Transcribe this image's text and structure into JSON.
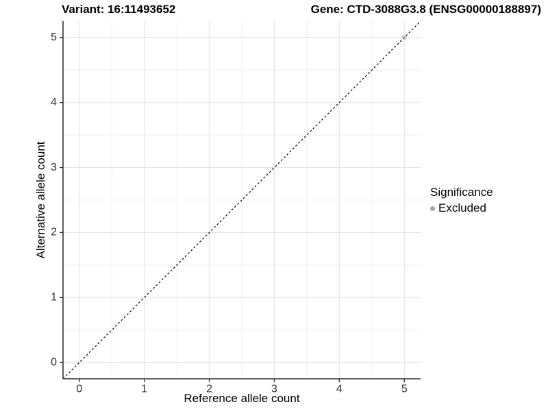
{
  "chart_data": {
    "type": "scatter",
    "title_left": "Variant: 16:11493652",
    "title_right": "Gene: CTD-3088G3.8 (ENSG00000188897)",
    "xlabel": "Reference allele count",
    "ylabel": "Alternative allele count",
    "xlim": [
      -0.25,
      5.25
    ],
    "ylim": [
      -0.25,
      5.25
    ],
    "xticks": [
      0,
      1,
      2,
      3,
      4,
      5
    ],
    "yticks": [
      0,
      1,
      2,
      3,
      4,
      5
    ],
    "minor_ticks": [
      0.5,
      1.5,
      2.5,
      3.5,
      4.5
    ],
    "grid": true,
    "identity_line": {
      "style": "dashed",
      "color": "#000000"
    },
    "points": [
      {
        "x": 5,
        "y": 5,
        "significance": "Excluded"
      }
    ],
    "legend": {
      "title": "Significance",
      "position": "right",
      "entries": [
        {
          "label": "Excluded",
          "color": "#a6a6a6"
        }
      ]
    },
    "colors": {
      "background": "#ffffff",
      "grid_major": "#e4e4e4",
      "grid_minor": "#efefef",
      "axis_line": "#4a4a4a",
      "tick_mark": "#333333",
      "tick_label": "#303030",
      "point": "#a6a6a6"
    },
    "point_opacity": 0.6
  }
}
